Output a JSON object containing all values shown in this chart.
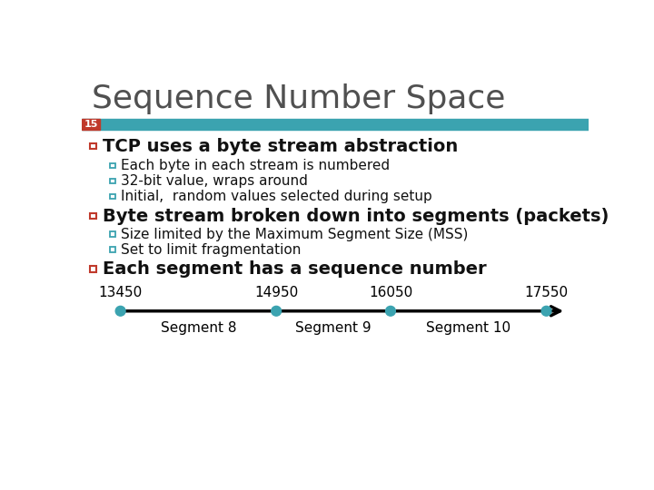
{
  "title": "Sequence Number Space",
  "slide_number": "15",
  "header_bar_color": "#3ba3b0",
  "slide_number_bg": "#c0392b",
  "slide_number_color": "#ffffff",
  "background_color": "#ffffff",
  "title_color": "#505050",
  "bullet_color": "#111111",
  "red_sq_color": "#c0392b",
  "teal_sq_color": "#3ba3b0",
  "bullet1_text": "TCP uses a byte stream abstraction",
  "sub1a": "Each byte in each stream is numbered",
  "sub1b": "32-bit value, wraps around",
  "sub1c": "Initial,  random values selected during setup",
  "bullet2_text": "Byte stream broken down into segments (packets)",
  "sub2a": "Size limited by the Maximum Segment Size (MSS)",
  "sub2b": "Set to limit fragmentation",
  "bullet3_text": "Each segment has a sequence number",
  "seq_numbers": [
    13450,
    14950,
    16050,
    17550
  ],
  "seg_labels": [
    "Segment 8",
    "Segment 9",
    "Segment 10"
  ],
  "dot_color": "#3ba3b0",
  "title_fontsize": 26,
  "main_bullet_fontsize": 14,
  "sub_bullet_fontsize": 11,
  "seq_fontsize": 11,
  "seg_label_fontsize": 11
}
